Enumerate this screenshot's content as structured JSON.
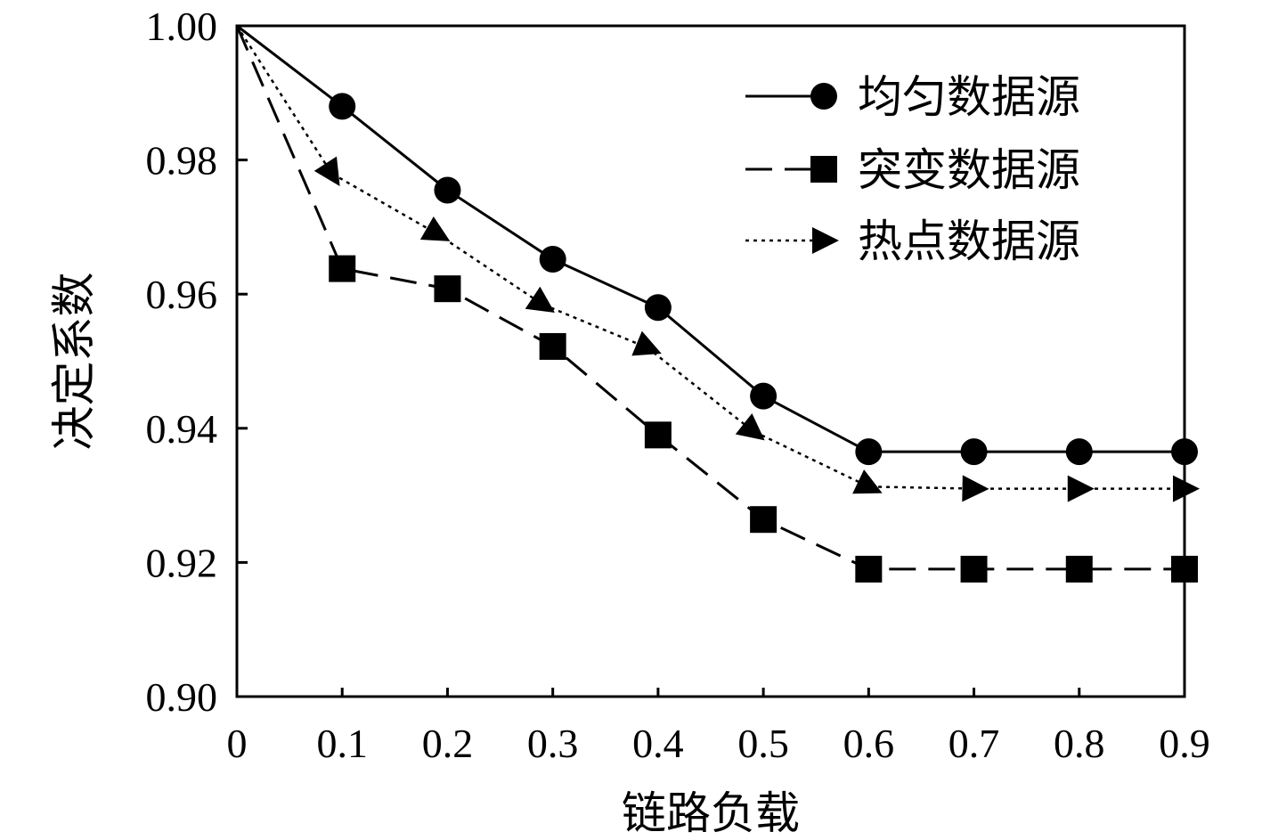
{
  "chart_data": {
    "type": "line",
    "xlabel": "链路负载",
    "ylabel": "决定系数",
    "xlim": [
      0,
      0.9
    ],
    "ylim": [
      0.9,
      1.0
    ],
    "x_ticks": [
      "0",
      "0.1",
      "0.2",
      "0.3",
      "0.4",
      "0.5",
      "0.6",
      "0.7",
      "0.8",
      "0.9"
    ],
    "y_ticks": [
      "0.90",
      "0.92",
      "0.94",
      "0.96",
      "0.98",
      "1.00"
    ],
    "grid": false,
    "legend_position": "top-right",
    "series": [
      {
        "name": "均匀数据源",
        "line_style": "solid",
        "marker": "circle",
        "points": [
          [
            0,
            1.0
          ],
          [
            0.1,
            0.988
          ],
          [
            0.2,
            0.9755
          ],
          [
            0.3,
            0.9652
          ],
          [
            0.4,
            0.958
          ],
          [
            0.5,
            0.9448
          ],
          [
            0.6,
            0.9365
          ],
          [
            0.7,
            0.9365
          ],
          [
            0.8,
            0.9365
          ],
          [
            0.9,
            0.9365
          ]
        ]
      },
      {
        "name": "突变数据源",
        "line_style": "dashed",
        "marker": "square",
        "points": [
          [
            0,
            1.0
          ],
          [
            0.1,
            0.9638
          ],
          [
            0.2,
            0.9608
          ],
          [
            0.3,
            0.9522
          ],
          [
            0.4,
            0.939
          ],
          [
            0.5,
            0.9264
          ],
          [
            0.6,
            0.919
          ],
          [
            0.7,
            0.919
          ],
          [
            0.8,
            0.919
          ],
          [
            0.9,
            0.919
          ]
        ]
      },
      {
        "name": "热点数据源",
        "line_style": "dotted",
        "marker": "triangle",
        "points": [
          [
            0,
            1.0
          ],
          [
            0.09,
            0.978
          ],
          [
            0.19,
            0.969
          ],
          [
            0.29,
            0.9585
          ],
          [
            0.39,
            0.952
          ],
          [
            0.49,
            0.9396
          ],
          [
            0.6,
            0.9313
          ],
          [
            0.7,
            0.931
          ],
          [
            0.8,
            0.931
          ],
          [
            0.9,
            0.931
          ]
        ]
      }
    ]
  }
}
